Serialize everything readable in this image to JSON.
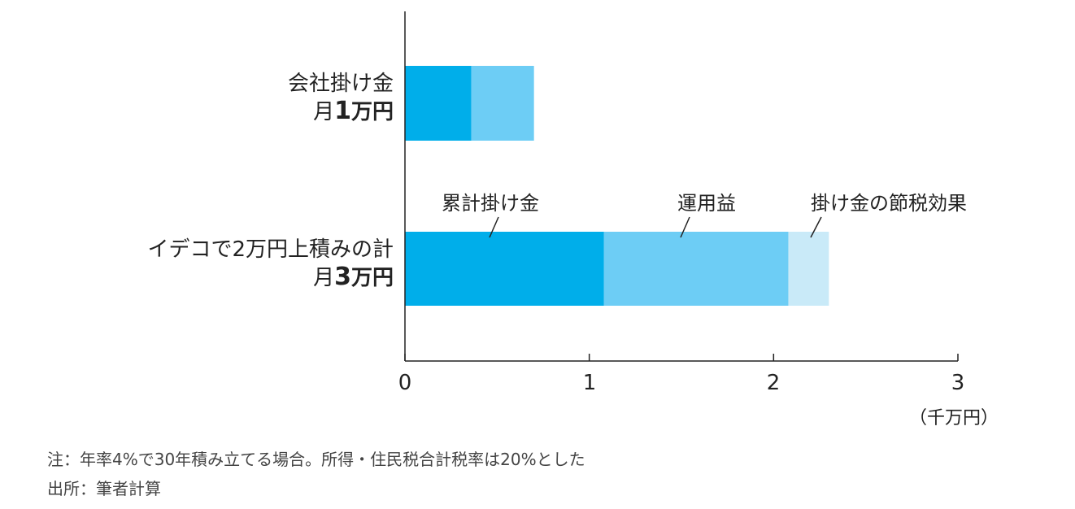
{
  "chart_data": {
    "type": "bar",
    "orientation": "horizontal",
    "stacked": true,
    "categories": [
      {
        "line1": "会社掛け金",
        "line2_prefix": "月",
        "line2_num": "1",
        "line2_unit": "万円"
      },
      {
        "line1": "イデコで2万円上積みの計",
        "line2_prefix": "月",
        "line2_num": "3",
        "line2_unit": "万円"
      }
    ],
    "series": [
      {
        "name": "累計掛け金",
        "color": "#00aeea",
        "values": [
          0.36,
          1.08
        ]
      },
      {
        "name": "運用益",
        "color": "#6dcdf5",
        "values": [
          0.34,
          1.0
        ]
      },
      {
        "name": "掛け金の節税効果",
        "color": "#c9eaf8",
        "values": [
          0,
          0.22
        ]
      }
    ],
    "xlim": [
      0,
      3
    ],
    "xticks": [
      "0",
      "1",
      "2",
      "3"
    ],
    "xunit": "（千万円）"
  },
  "notes": {
    "line1": "注：年率4%で30年積み立てる場合。所得・住民税合計税率は20%とした",
    "line2": "出所：筆者計算"
  }
}
